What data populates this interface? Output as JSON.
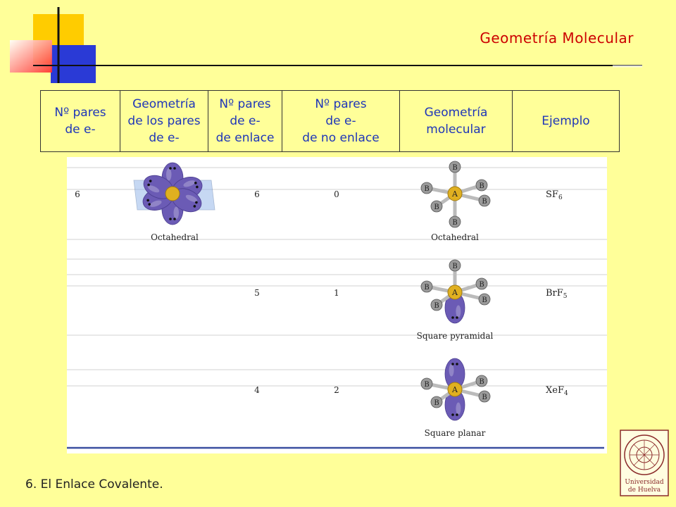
{
  "slide": {
    "title": "Geometría Molecular",
    "footer": "6. El Enlace Covalente.",
    "logo_text": [
      "Universidad",
      "de Huelva"
    ]
  },
  "table_header": [
    [
      "Nº pares",
      "de e-"
    ],
    [
      "Geometría",
      "de los pares",
      "de e-"
    ],
    [
      "Nº pares",
      "de e-",
      "de enlace"
    ],
    [
      "Nº pares",
      "de e-",
      "de no enlace"
    ],
    [
      "Geometría",
      "molecular"
    ],
    [
      "Ejemplo"
    ]
  ],
  "rows": [
    {
      "pairs": "6",
      "pair_geometry": "Octahedral",
      "bonding": "6",
      "nonbonding": "0",
      "molecular_geometry": "Octahedral",
      "example": "SF",
      "example_sub": "6"
    },
    {
      "pairs": "",
      "pair_geometry": "",
      "bonding": "5",
      "nonbonding": "1",
      "molecular_geometry": "Square pyramidal",
      "example": "BrF",
      "example_sub": "5"
    },
    {
      "pairs": "",
      "pair_geometry": "",
      "bonding": "4",
      "nonbonding": "2",
      "molecular_geometry": "Square planar",
      "example": "XeF",
      "example_sub": "4"
    }
  ],
  "atom_labels": {
    "central": "A",
    "outer": "B"
  },
  "colors": {
    "lobe": "#6b5bb5",
    "title": "#cc0000",
    "header": "#1f36b8",
    "central_atom": "#e0b020",
    "outer_atom": "#9a9a9a",
    "blue_line": "#3a4fa0"
  }
}
